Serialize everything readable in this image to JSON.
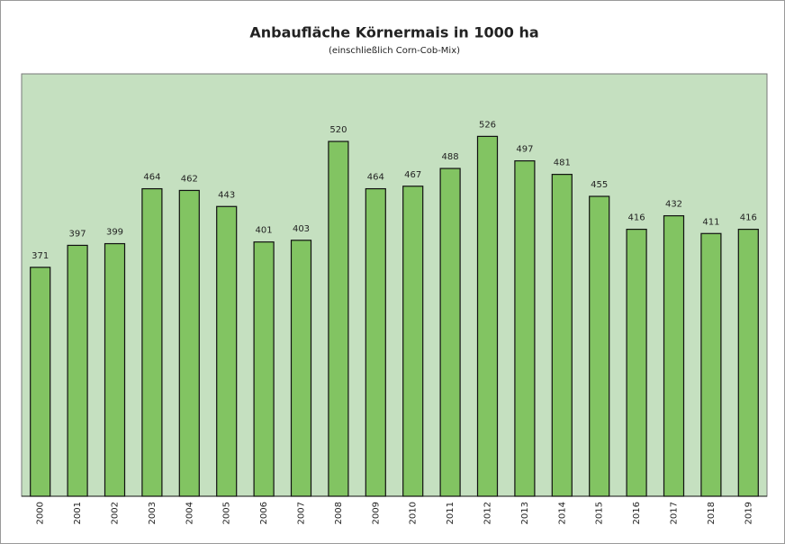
{
  "chart_data": {
    "type": "bar",
    "title": "Anbaufläche Körnermais in 1000 ha",
    "subtitle": "(einschließlich Corn-Cob-Mix)",
    "categories": [
      "2000",
      "2001",
      "2002",
      "2003",
      "2004",
      "2005",
      "2006",
      "2007",
      "2008",
      "2009",
      "2010",
      "2011",
      "2012",
      "2013",
      "2014",
      "2015",
      "2016",
      "2017",
      "2018",
      "2019"
    ],
    "values": [
      371,
      397,
      399,
      464,
      462,
      443,
      401,
      403,
      520,
      464,
      467,
      488,
      526,
      497,
      481,
      455,
      416,
      432,
      411,
      416
    ],
    "color": "#82c462",
    "plot_background": "#c5e0c0",
    "ylim": [
      100,
      600
    ]
  }
}
